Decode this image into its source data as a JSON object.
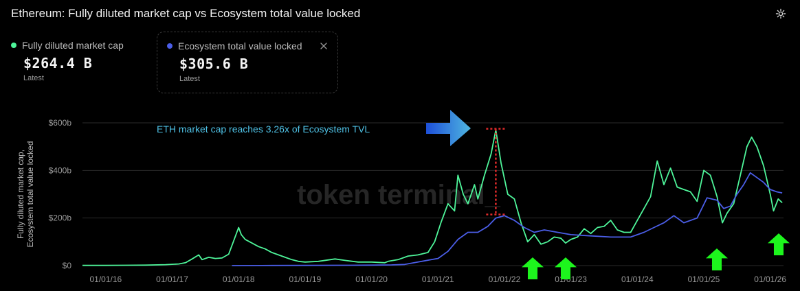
{
  "title": "Ethereum: Fully diluted market cap vs Ecosystem total value locked",
  "icons": {
    "settings": "gear-icon",
    "close": "close-icon"
  },
  "legend": [
    {
      "label": "Fully diluted market cap",
      "value": "$264.4 B",
      "sub": "Latest",
      "color": "#4ef59a"
    },
    {
      "label": "Ecosystem total value locked",
      "value": "$305.6 B",
      "sub": "Latest",
      "color": "#4b5ee8"
    }
  ],
  "chart_data": {
    "type": "line",
    "ylabel": "Fully diluted market cap,\nEcosystem total value locked",
    "ylim": [
      0,
      600
    ],
    "yticks": [
      "$0",
      "$200b",
      "$400b",
      "$600b"
    ],
    "yticks_values": [
      0,
      200,
      400,
      600
    ],
    "xticks": [
      "01/01/16",
      "01/01/17",
      "01/01/18",
      "01/01/19",
      "01/01/20",
      "01/01/21",
      "01/01/22",
      "01/01/23",
      "01/01/24",
      "01/01/25",
      "01/01/26"
    ],
    "xticks_values": [
      2016,
      2017,
      2018,
      2019,
      2020,
      2021,
      2022,
      2023,
      2024,
      2025,
      2026
    ],
    "xlim": [
      2015.65,
      2026.2
    ],
    "grid": true,
    "watermark": "token terminal_",
    "annotation": "ETH market cap reaches 3.26x of Ecosystem TVL",
    "series": [
      {
        "name": "Fully diluted market cap",
        "color": "#4ef59a",
        "x": [
          2015.65,
          2016.0,
          2016.3,
          2016.6,
          2016.9,
          2017.1,
          2017.2,
          2017.3,
          2017.4,
          2017.45,
          2017.55,
          2017.65,
          2017.75,
          2017.85,
          2017.92,
          2018.0,
          2018.04,
          2018.1,
          2018.2,
          2018.3,
          2018.4,
          2018.5,
          2018.6,
          2018.7,
          2018.8,
          2018.9,
          2019.0,
          2019.2,
          2019.45,
          2019.6,
          2019.8,
          2020.0,
          2020.2,
          2020.25,
          2020.4,
          2020.55,
          2020.7,
          2020.85,
          2020.95,
          2021.05,
          2021.15,
          2021.25,
          2021.3,
          2021.38,
          2021.45,
          2021.55,
          2021.6,
          2021.7,
          2021.8,
          2021.87,
          2021.95,
          2022.05,
          2022.15,
          2022.25,
          2022.35,
          2022.45,
          2022.55,
          2022.65,
          2022.75,
          2022.85,
          2022.92,
          2023.0,
          2023.1,
          2023.2,
          2023.3,
          2023.4,
          2023.5,
          2023.6,
          2023.7,
          2023.8,
          2023.9,
          2024.0,
          2024.1,
          2024.2,
          2024.3,
          2024.4,
          2024.5,
          2024.6,
          2024.7,
          2024.8,
          2024.9,
          2025.0,
          2025.1,
          2025.2,
          2025.28,
          2025.35,
          2025.45,
          2025.55,
          2025.65,
          2025.72,
          2025.8,
          2025.9,
          2026.0,
          2026.05,
          2026.12,
          2026.18
        ],
        "y": [
          1,
          1,
          1.5,
          2,
          4,
          7,
          12,
          28,
          45,
          25,
          35,
          30,
          32,
          48,
          100,
          160,
          130,
          110,
          95,
          80,
          70,
          55,
          45,
          35,
          25,
          18,
          15,
          18,
          28,
          22,
          15,
          15,
          12,
          18,
          25,
          40,
          45,
          55,
          100,
          185,
          260,
          230,
          380,
          300,
          260,
          340,
          280,
          380,
          470,
          570,
          430,
          300,
          280,
          180,
          100,
          130,
          90,
          100,
          120,
          115,
          95,
          110,
          120,
          155,
          135,
          160,
          165,
          190,
          150,
          140,
          140,
          190,
          240,
          290,
          440,
          340,
          410,
          330,
          320,
          310,
          270,
          400,
          380,
          290,
          180,
          220,
          260,
          380,
          500,
          540,
          500,
          420,
          300,
          230,
          280,
          264.4
        ]
      },
      {
        "name": "Ecosystem total value locked",
        "color": "#4b5ee8",
        "x": [
          2017.9,
          2018.5,
          2019.0,
          2019.6,
          2020.0,
          2020.3,
          2020.5,
          2020.7,
          2020.9,
          2021.0,
          2021.15,
          2021.3,
          2021.45,
          2021.6,
          2021.75,
          2021.87,
          2022.0,
          2022.15,
          2022.3,
          2022.45,
          2022.6,
          2022.8,
          2023.0,
          2023.3,
          2023.6,
          2023.9,
          2024.1,
          2024.25,
          2024.4,
          2024.55,
          2024.7,
          2024.9,
          2025.05,
          2025.2,
          2025.3,
          2025.4,
          2025.5,
          2025.6,
          2025.7,
          2025.8,
          2025.9,
          2026.0,
          2026.1,
          2026.18
        ],
        "y": [
          0,
          0.5,
          1,
          1.5,
          2,
          3,
          5,
          15,
          25,
          30,
          60,
          110,
          140,
          140,
          165,
          200,
          210,
          190,
          160,
          140,
          150,
          140,
          130,
          125,
          120,
          120,
          140,
          160,
          180,
          210,
          180,
          200,
          285,
          275,
          240,
          250,
          300,
          340,
          390,
          370,
          350,
          320,
          310,
          305.6
        ]
      }
    ]
  }
}
